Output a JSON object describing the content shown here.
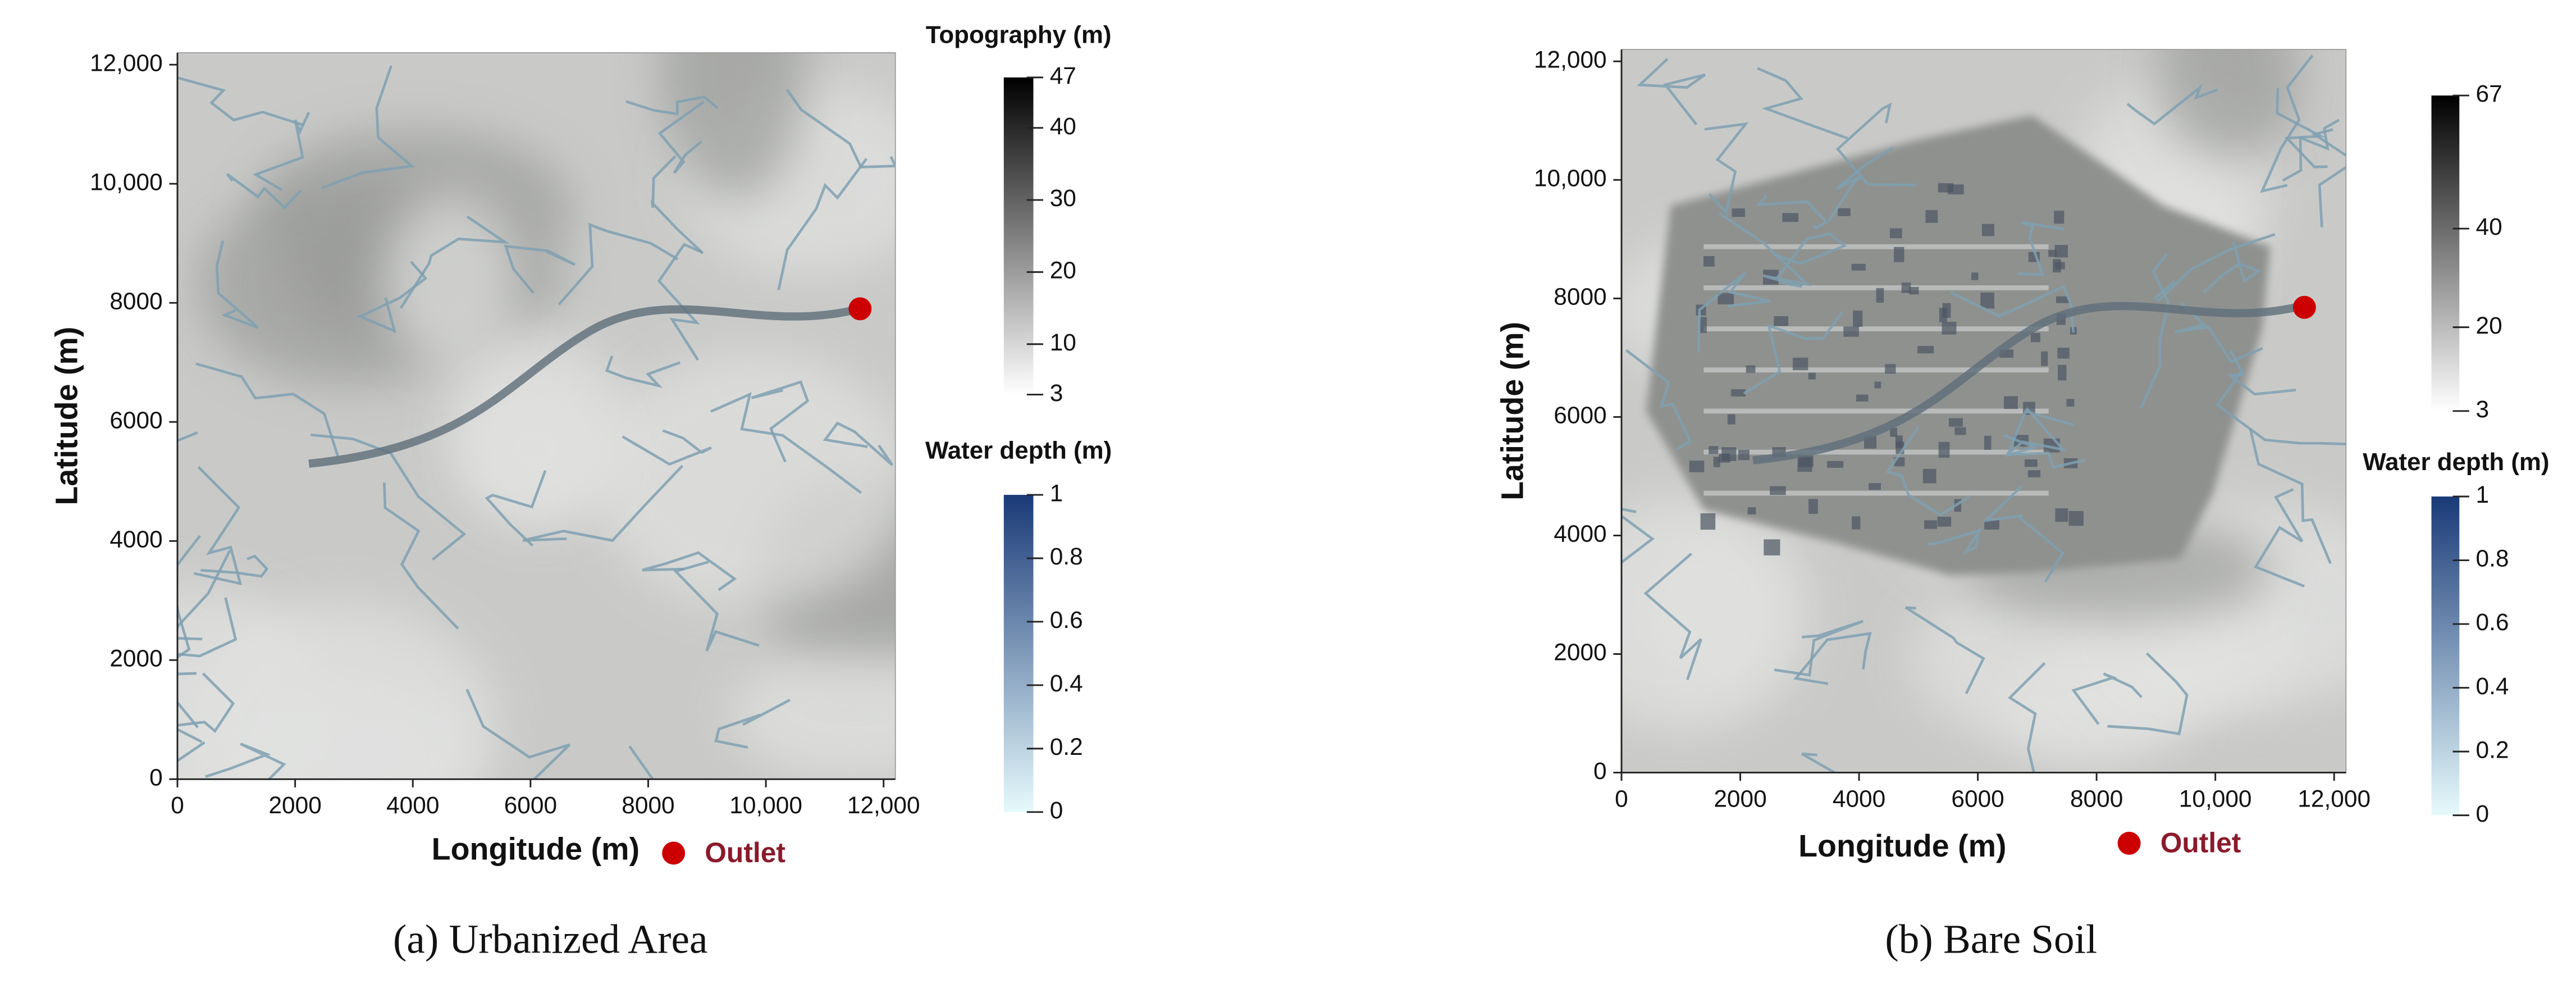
{
  "chart_data": [
    {
      "type": "heatmap",
      "caption": "(a) Urbanized Area",
      "xlabel": "Longitude (m)",
      "ylabel": "Latitude (m)",
      "xlim": [
        0,
        12200
      ],
      "ylim": [
        0,
        12200
      ],
      "xticks": [
        0,
        2000,
        4000,
        6000,
        8000,
        {
          "value": 10000,
          "label": "10,000"
        },
        {
          "value": 12000,
          "label": "12,000"
        }
      ],
      "yticks": [
        0,
        2000,
        4000,
        6000,
        8000,
        {
          "value": 10000,
          "label": "10,000"
        },
        {
          "value": 12000,
          "label": "12,000"
        }
      ],
      "colorbars": [
        {
          "title": "Topography (m)",
          "lim": [
            3,
            47
          ],
          "ticks": [
            3,
            10,
            20,
            30,
            40,
            47
          ],
          "colors": [
            "#ffffff",
            "#000000"
          ]
        },
        {
          "title": "Water depth (m)",
          "lim": [
            0,
            1
          ],
          "ticks": [
            0,
            0.2,
            0.4,
            0.6,
            0.8,
            1
          ],
          "colors": [
            "#e6fafc",
            "#1a3a78"
          ]
        }
      ],
      "series": [
        {
          "name": "Outlet",
          "color": "#cc0000",
          "x": [
            11600
          ],
          "values": [
            7900
          ]
        }
      ]
    },
    {
      "type": "heatmap",
      "caption": "(b) Bare Soil",
      "xlabel": "Longitude (m)",
      "ylabel": "Latitude (m)",
      "xlim": [
        0,
        12200
      ],
      "ylim": [
        0,
        12200
      ],
      "xticks": [
        0,
        2000,
        4000,
        6000,
        8000,
        {
          "value": 10000,
          "label": "10,000"
        },
        {
          "value": 12000,
          "label": "12,000"
        }
      ],
      "yticks": [
        0,
        2000,
        4000,
        6000,
        8000,
        {
          "value": 10000,
          "label": "10,000"
        },
        {
          "value": 12000,
          "label": "12,000"
        }
      ],
      "colorbars": [
        {
          "lim": [
            3,
            67
          ],
          "ticks": [
            3,
            20,
            40,
            67
          ],
          "colors": [
            "#ffffff",
            "#000000"
          ]
        },
        {
          "title": "Water depth (m)",
          "lim": [
            0,
            1
          ],
          "ticks": [
            0,
            0.2,
            0.4,
            0.6,
            0.8,
            1
          ],
          "colors": [
            "#e6fafc",
            "#1a3a78"
          ]
        }
      ],
      "series": [
        {
          "name": "Outlet",
          "color": "#cc0000",
          "x": [
            11500
          ],
          "values": [
            7850
          ]
        }
      ]
    }
  ]
}
